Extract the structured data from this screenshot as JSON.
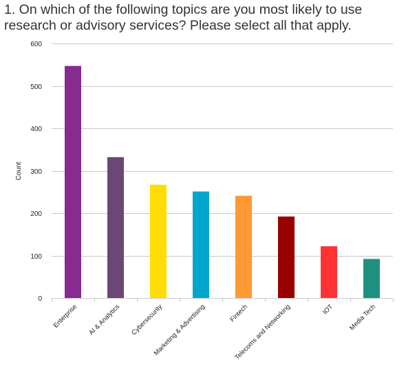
{
  "question": {
    "text": "1. On which of the following topics are you most likely to use research or advisory services? Please select all that apply."
  },
  "chart_data": {
    "type": "bar",
    "title": "",
    "xlabel": "",
    "ylabel": "Count",
    "ylim": [
      0,
      600
    ],
    "yticks": [
      0,
      100,
      200,
      300,
      400,
      500,
      600
    ],
    "grid": true,
    "categories": [
      "Enterprise",
      "AI & Analytics",
      "Cybersecurity",
      "Marketing & Advertising",
      "Fintech",
      "Telecoms and Networking",
      "IOT",
      "Media Tech"
    ],
    "values": [
      547,
      332,
      267,
      251,
      241,
      192,
      122,
      92
    ],
    "colors": [
      "#872B90",
      "#6C4675",
      "#FFDD00",
      "#00A6CC",
      "#FF9933",
      "#990000",
      "#FF3333",
      "#1E917E"
    ]
  }
}
